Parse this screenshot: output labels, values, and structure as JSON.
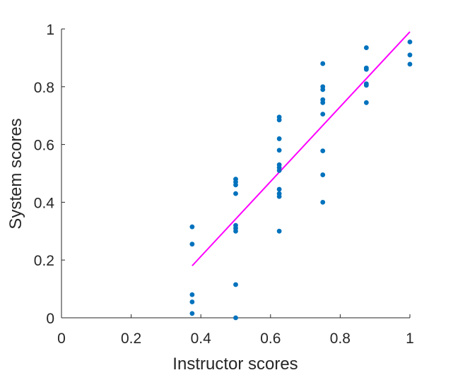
{
  "chart_data": {
    "type": "scatter",
    "xlabel": "Instructor scores",
    "ylabel": "System scores",
    "xlim": [
      0,
      1
    ],
    "ylim": [
      0,
      1
    ],
    "x_ticks": [
      "0",
      "0.2",
      "0.4",
      "0.6",
      "0.8",
      "1"
    ],
    "y_ticks": [
      "0",
      "0.2",
      "0.4",
      "0.6",
      "0.8",
      "1"
    ],
    "grid": false,
    "points": [
      [
        0.375,
        0.315
      ],
      [
        0.375,
        0.255
      ],
      [
        0.375,
        0.08
      ],
      [
        0.375,
        0.055
      ],
      [
        0.375,
        0.015
      ],
      [
        0.5,
        0.48
      ],
      [
        0.5,
        0.47
      ],
      [
        0.5,
        0.46
      ],
      [
        0.5,
        0.43
      ],
      [
        0.5,
        0.32
      ],
      [
        0.5,
        0.31
      ],
      [
        0.5,
        0.3
      ],
      [
        0.5,
        0.115
      ],
      [
        0.5,
        0.0
      ],
      [
        0.625,
        0.695
      ],
      [
        0.625,
        0.685
      ],
      [
        0.625,
        0.62
      ],
      [
        0.625,
        0.58
      ],
      [
        0.625,
        0.53
      ],
      [
        0.625,
        0.52
      ],
      [
        0.625,
        0.51
      ],
      [
        0.625,
        0.445
      ],
      [
        0.625,
        0.43
      ],
      [
        0.625,
        0.42
      ],
      [
        0.625,
        0.3
      ],
      [
        0.75,
        0.88
      ],
      [
        0.75,
        0.8
      ],
      [
        0.75,
        0.79
      ],
      [
        0.75,
        0.755
      ],
      [
        0.75,
        0.745
      ],
      [
        0.75,
        0.705
      ],
      [
        0.75,
        0.578
      ],
      [
        0.75,
        0.495
      ],
      [
        0.75,
        0.4
      ],
      [
        0.875,
        0.935
      ],
      [
        0.875,
        0.865
      ],
      [
        0.875,
        0.86
      ],
      [
        0.875,
        0.81
      ],
      [
        0.875,
        0.805
      ],
      [
        0.875,
        0.745
      ],
      [
        1.0,
        0.955
      ],
      [
        1.0,
        0.91
      ],
      [
        1.0,
        0.878
      ]
    ],
    "fit_line": {
      "x": [
        0.375,
        1.0
      ],
      "y": [
        0.18,
        0.99
      ]
    },
    "colors": {
      "points": "#0072BD",
      "fit_line": "#FF00FF",
      "axis": "#262626"
    }
  }
}
